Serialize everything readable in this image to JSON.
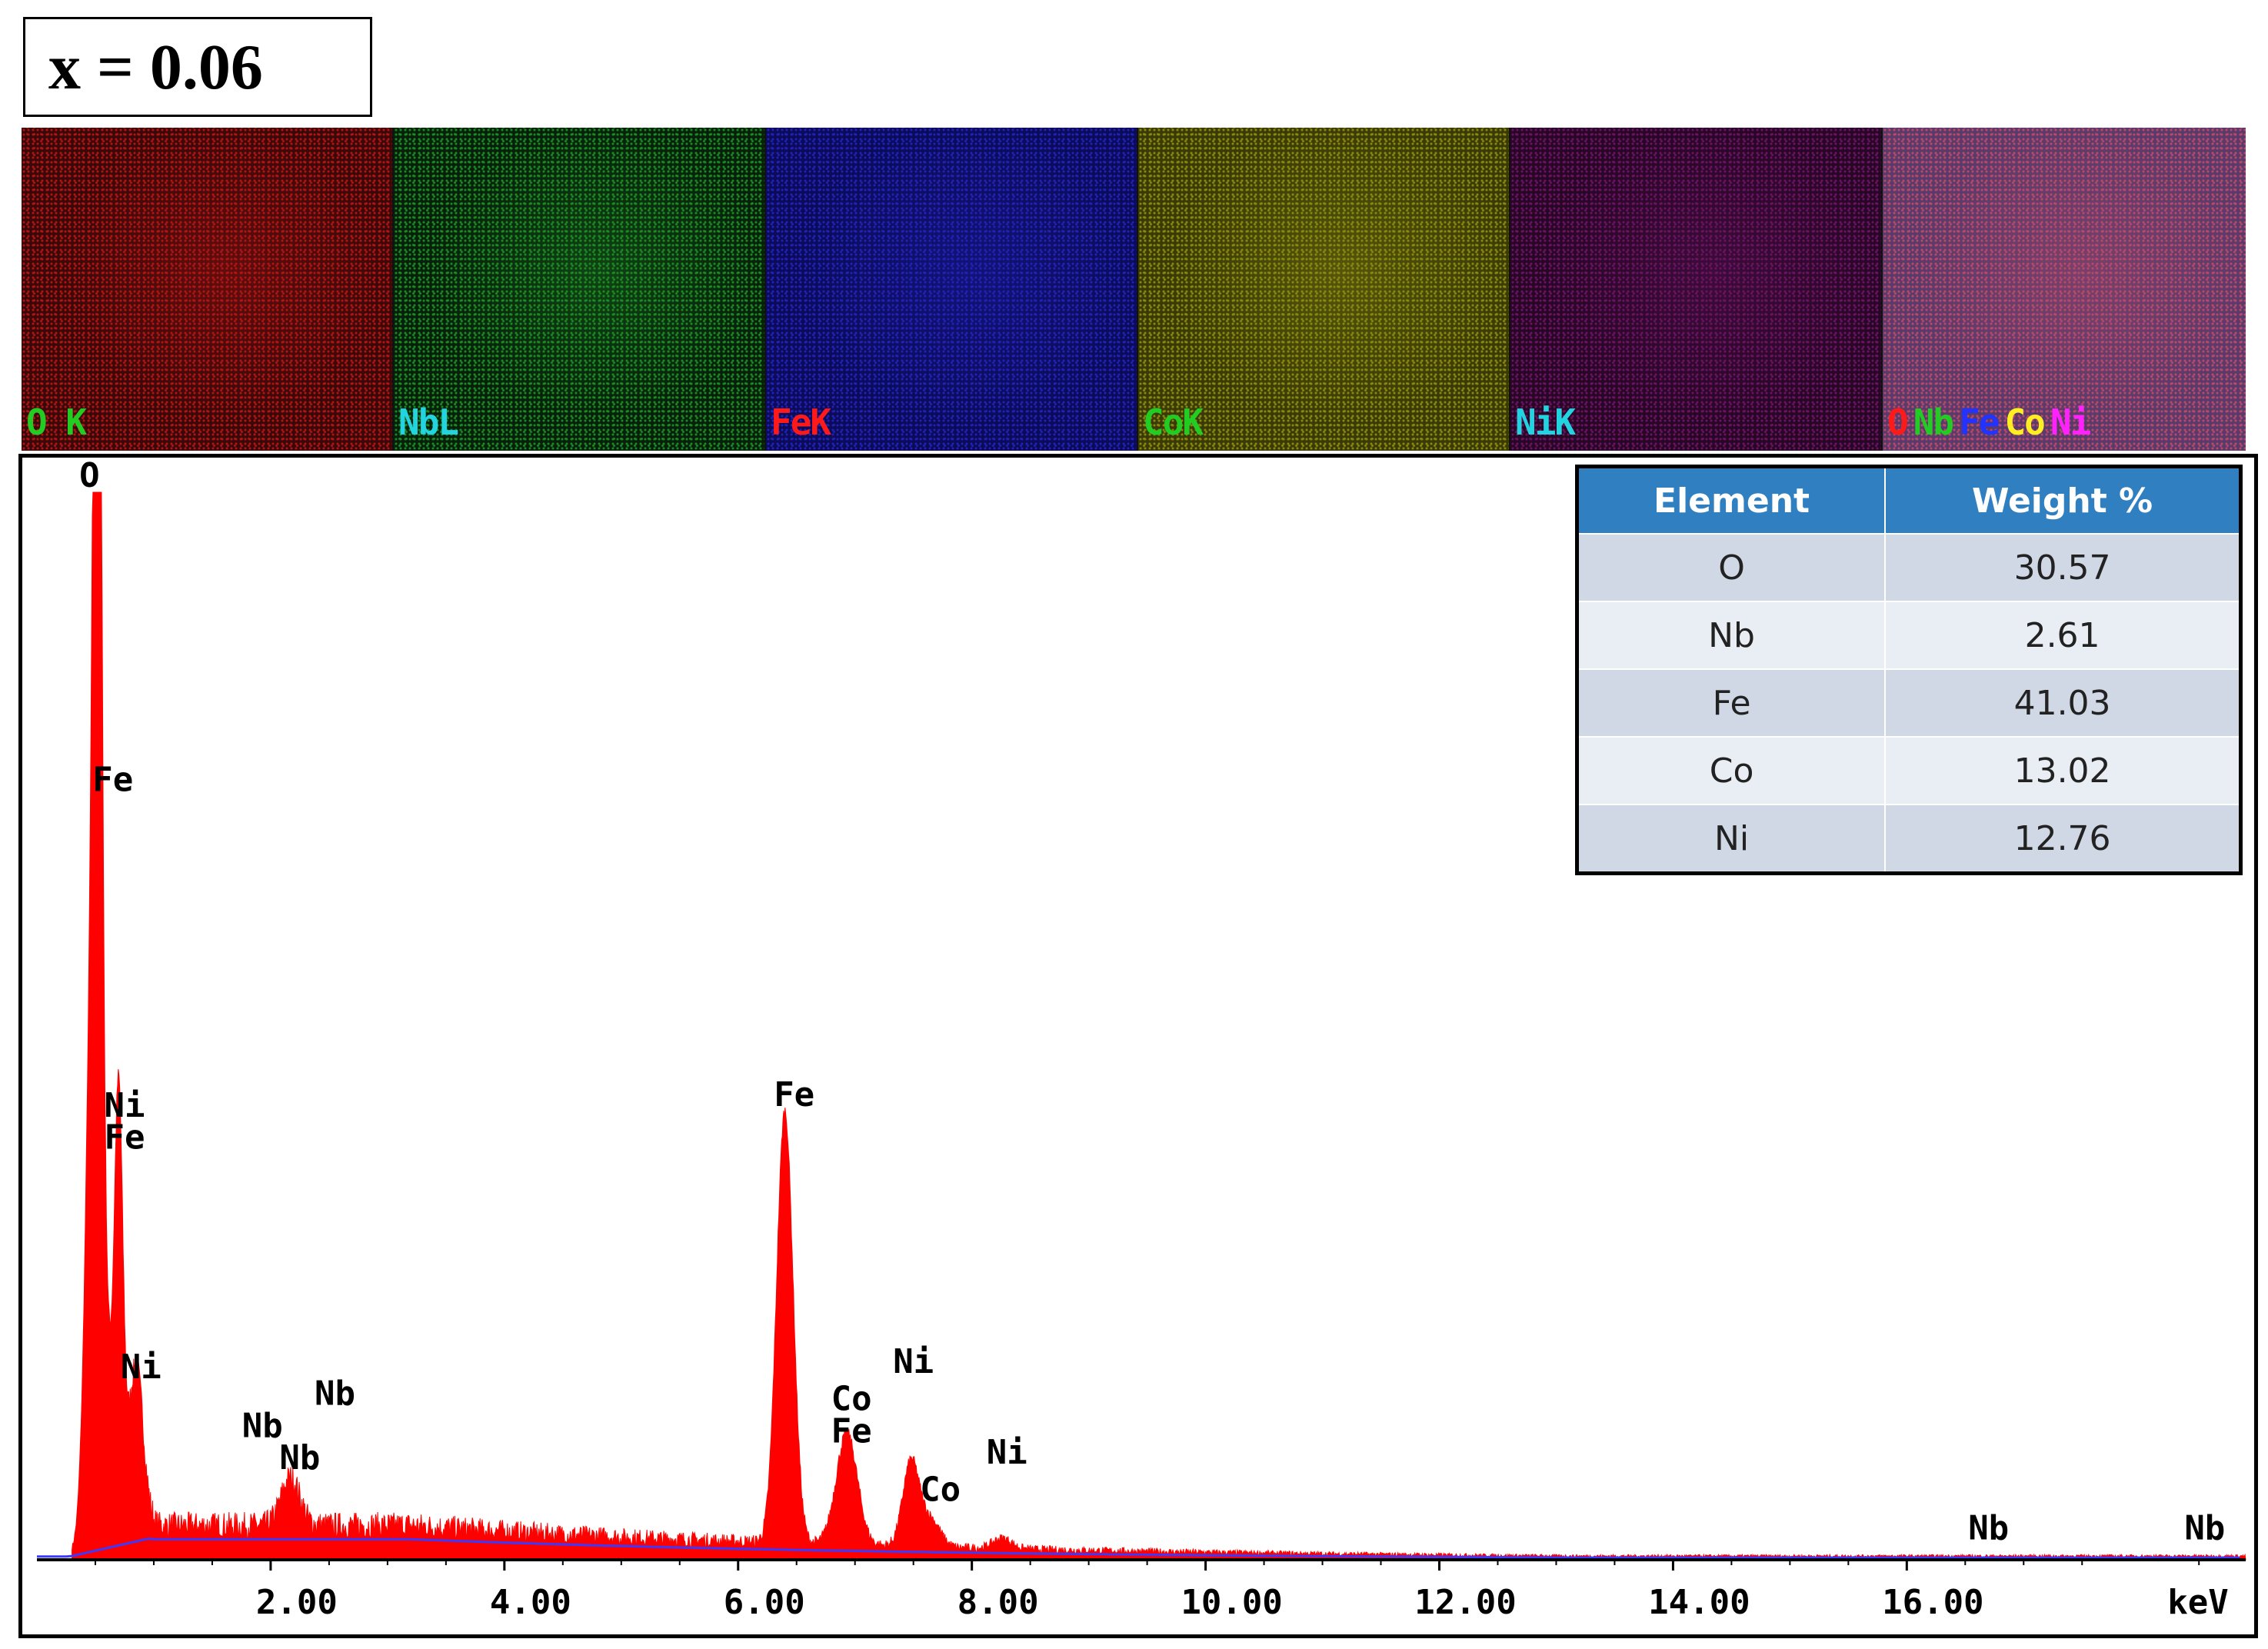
{
  "sample_label": "x = 0.06",
  "maps": [
    {
      "name": "map-o",
      "labels": [
        {
          "text": "O K",
          "color": "#22cc22"
        }
      ],
      "bg": "#3a0808",
      "tint": "#b01616"
    },
    {
      "name": "map-nb",
      "labels": [
        {
          "text": "NbL",
          "color": "#22d3e0"
        }
      ],
      "bg": "#06200a",
      "tint": "#1f8a26"
    },
    {
      "name": "map-fe",
      "labels": [
        {
          "text": "FeK",
          "color": "#ff1a1a"
        }
      ],
      "bg": "#0b0b5a",
      "tint": "#2222b4"
    },
    {
      "name": "map-co",
      "labels": [
        {
          "text": "CoK",
          "color": "#22cc22"
        }
      ],
      "bg": "#3a3a06",
      "tint": "#8a8a12"
    },
    {
      "name": "map-ni",
      "labels": [
        {
          "text": "NiK",
          "color": "#22d3e0"
        }
      ],
      "bg": "#280626",
      "tint": "#6a1462"
    },
    {
      "name": "map-overlay",
      "labels": [
        {
          "text": "O",
          "color": "#ff1a1a"
        },
        {
          "text": "Nb",
          "color": "#22cc22"
        },
        {
          "text": "Fe",
          "color": "#2233ff"
        },
        {
          "text": "Co",
          "color": "#ffee22"
        },
        {
          "text": "Ni",
          "color": "#ff22ff"
        }
      ],
      "bg": "#5a3a6a",
      "tint": "#b84a6a"
    }
  ],
  "composition_table": {
    "headers": [
      "Element",
      "Weight %"
    ],
    "rows": [
      {
        "element": "O",
        "weight": "30.57"
      },
      {
        "element": "Nb",
        "weight": "2.61"
      },
      {
        "element": "Fe",
        "weight": "41.03"
      },
      {
        "element": "Co",
        "weight": "13.02"
      },
      {
        "element": "Ni",
        "weight": "12.76"
      }
    ],
    "header_color": "#2f7fc1"
  },
  "chart_data": {
    "type": "area",
    "xlabel": "keV",
    "xlim": [
      0,
      18.9
    ],
    "ylim": [
      0,
      100
    ],
    "xticks": [
      {
        "value": 2,
        "label": "2.00"
      },
      {
        "value": 4,
        "label": "4.00"
      },
      {
        "value": 6,
        "label": "6.00"
      },
      {
        "value": 8,
        "label": "8.00"
      },
      {
        "value": 10,
        "label": "10.00"
      },
      {
        "value": 12,
        "label": "12.00"
      },
      {
        "value": 14,
        "label": "14.00"
      },
      {
        "value": 16,
        "label": "16.00"
      }
    ],
    "fill_color": "#ff0000",
    "background_line_color": "#3a3aff",
    "series": [
      {
        "peaks": [
          {
            "x": 0.52,
            "y": 100,
            "width": 0.03
          },
          {
            "x": 0.49,
            "y": 62,
            "width": 0.06
          },
          {
            "x": 0.7,
            "y": 35,
            "width": 0.035
          },
          {
            "x": 0.85,
            "y": 15,
            "width": 0.06
          },
          {
            "x": 0.6,
            "y": 12,
            "width": 0.1
          },
          {
            "x": 2.17,
            "y": 4.5,
            "width": 0.08
          },
          {
            "x": 6.4,
            "y": 40.5,
            "width": 0.07
          },
          {
            "x": 6.93,
            "y": 10.5,
            "width": 0.09
          },
          {
            "x": 7.48,
            "y": 8.0,
            "width": 0.07
          },
          {
            "x": 7.65,
            "y": 2.5,
            "width": 0.08
          },
          {
            "x": 8.26,
            "y": 1.0,
            "width": 0.08
          }
        ],
        "background_level": 2.5
      }
    ],
    "annotations": [
      {
        "text": "O",
        "x": 0.45,
        "y": 100.5
      },
      {
        "text": "Fe",
        "x": 0.65,
        "y": 72
      },
      {
        "text": "Ni",
        "x": 0.75,
        "y": 41.5
      },
      {
        "text": "Fe",
        "x": 0.75,
        "y": 38.5
      },
      {
        "text": "Ni",
        "x": 0.89,
        "y": 17.0
      },
      {
        "text": "Nb",
        "x": 2.55,
        "y": 14.5
      },
      {
        "text": "Nb",
        "x": 1.93,
        "y": 11.5
      },
      {
        "text": "Nb",
        "x": 2.25,
        "y": 8.5
      },
      {
        "text": "Fe",
        "x": 6.48,
        "y": 42.5
      },
      {
        "text": "Ni",
        "x": 7.5,
        "y": 17.5
      },
      {
        "text": "Co",
        "x": 6.97,
        "y": 14.0
      },
      {
        "text": "Fe",
        "x": 6.97,
        "y": 11.0
      },
      {
        "text": "Ni",
        "x": 8.3,
        "y": 9.0
      },
      {
        "text": "Co",
        "x": 7.73,
        "y": 5.5
      },
      {
        "text": "Nb",
        "x": 16.7,
        "y": 1.9
      },
      {
        "text": "Nb",
        "x": 18.55,
        "y": 1.9
      }
    ]
  }
}
